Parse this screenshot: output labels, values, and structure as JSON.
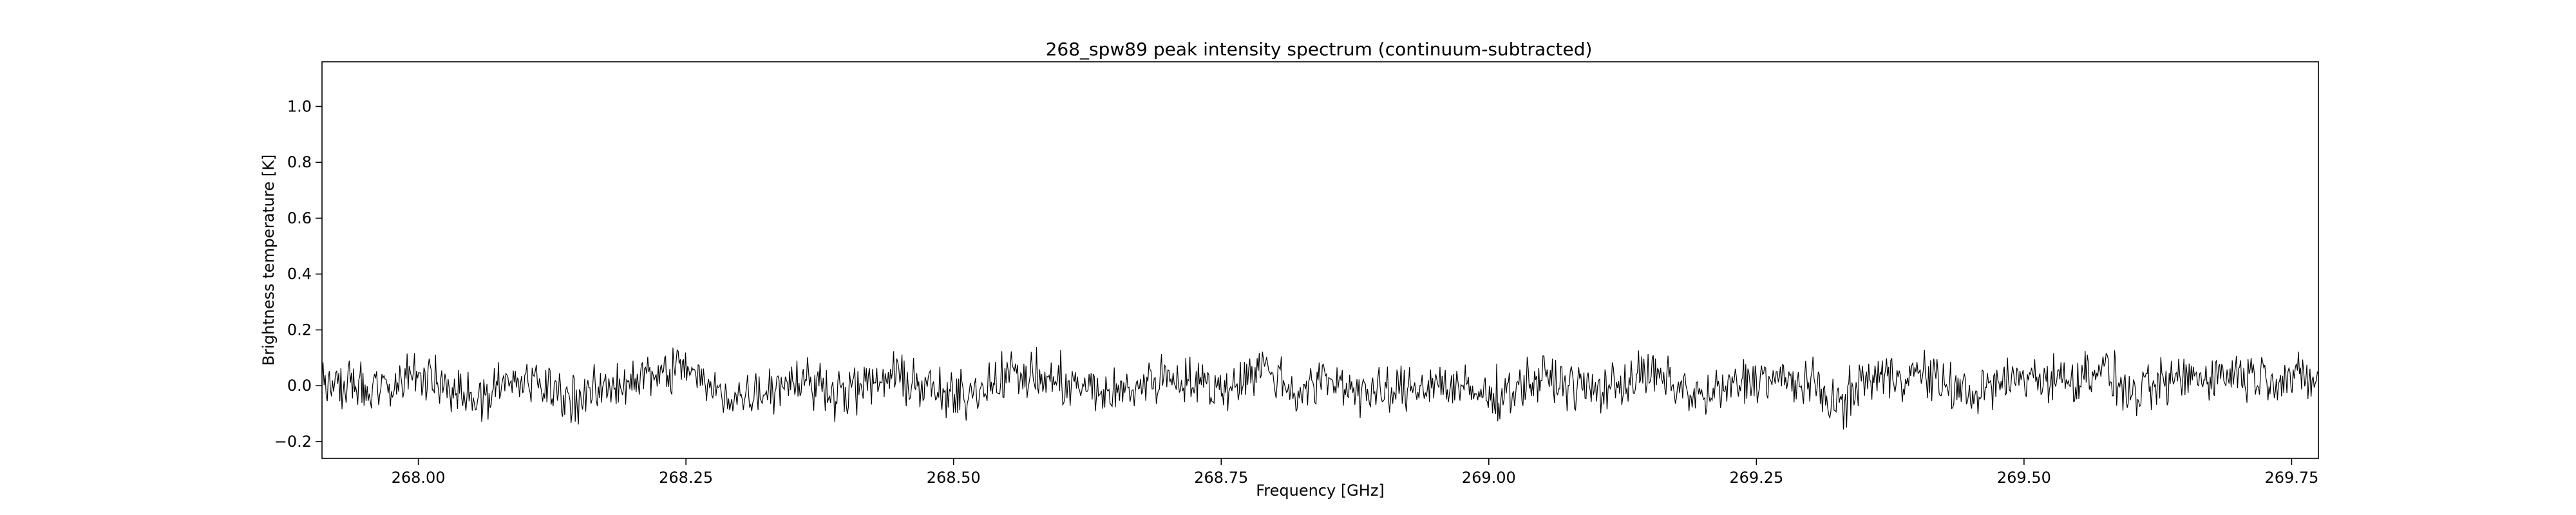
{
  "chart_data": {
    "type": "line",
    "title": "268_spw89 peak intensity spectrum (continuum-subtracted)",
    "xlabel": "Frequency [GHz]",
    "ylabel": "Brightness temperature [K]",
    "xlim": [
      267.91,
      269.775
    ],
    "ylim": [
      -0.26,
      1.16
    ],
    "xticks": [
      268.0,
      268.25,
      268.5,
      268.75,
      269.0,
      269.25,
      269.5,
      269.75
    ],
    "xtick_labels": [
      "268.00",
      "268.25",
      "268.50",
      "268.75",
      "269.00",
      "269.25",
      "269.50",
      "269.75"
    ],
    "yticks": [
      -0.2,
      0.0,
      0.2,
      0.4,
      0.6,
      0.8,
      1.0
    ],
    "ytick_labels": [
      "−0.2",
      "0.0",
      "0.2",
      "0.4",
      "0.6",
      "0.8",
      "1.0"
    ],
    "grid": false,
    "series": [
      {
        "color": "#000000",
        "x": [
          267.91,
          267.95,
          268.0,
          268.05,
          268.1,
          268.15,
          268.2,
          268.23,
          268.25,
          268.27,
          268.3,
          268.35,
          268.4,
          268.45,
          268.5,
          268.55,
          268.6,
          268.65,
          268.7,
          268.75,
          268.79,
          268.82,
          268.85,
          268.9,
          268.95,
          269.0,
          269.05,
          269.1,
          269.15,
          269.2,
          269.25,
          269.3,
          269.33,
          269.35,
          269.4,
          269.45,
          269.5,
          269.55,
          269.57,
          269.6,
          269.65,
          269.7,
          269.775
        ],
        "y": [
          0.02,
          -0.08,
          0.09,
          -0.11,
          0.05,
          -0.14,
          0.08,
          0.12,
          0.21,
          -0.03,
          -0.12,
          0.07,
          -0.06,
          0.1,
          -0.15,
          0.13,
          0.03,
          -0.09,
          0.11,
          -0.04,
          0.2,
          -0.07,
          0.06,
          -0.1,
          0.04,
          -0.12,
          0.08,
          -0.05,
          0.12,
          -0.13,
          0.09,
          0.01,
          -0.21,
          0.07,
          0.13,
          -0.09,
          0.1,
          0.06,
          0.22,
          -0.11,
          0.09,
          0.13,
          0.05
        ]
      }
    ]
  }
}
